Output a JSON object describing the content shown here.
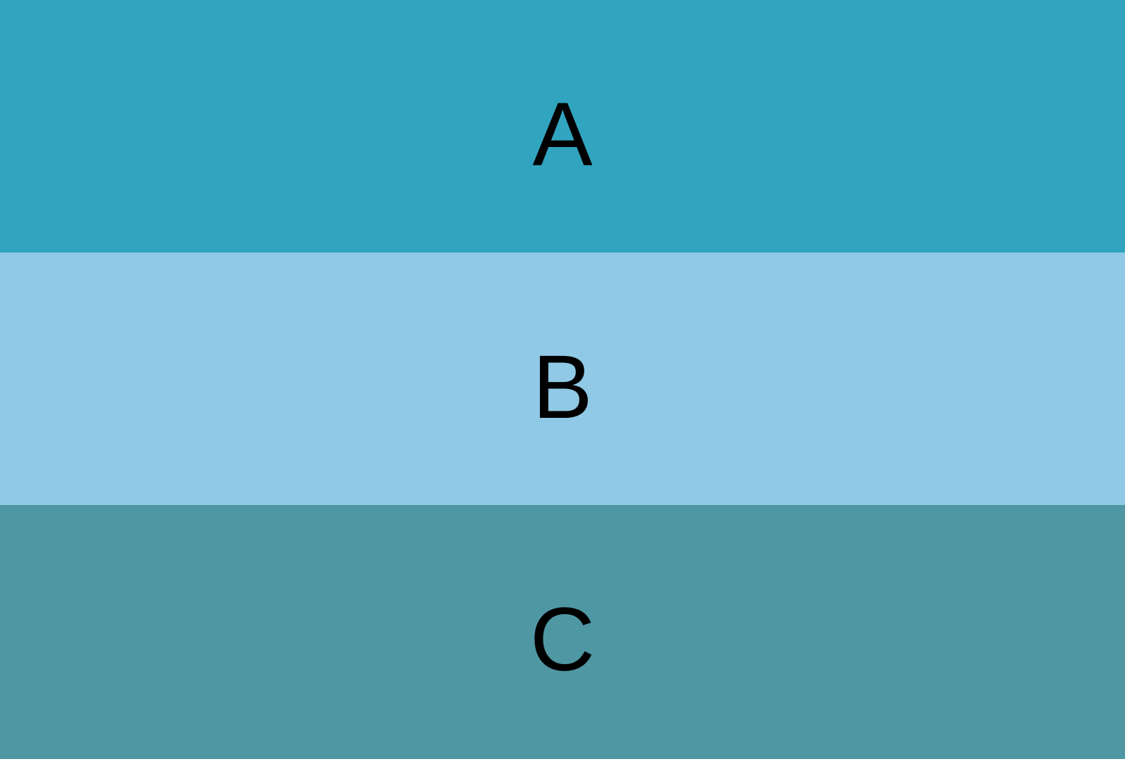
{
  "bands": [
    {
      "label": "A",
      "color": "#31a4c0"
    },
    {
      "label": "B",
      "color": "#90c9e5"
    },
    {
      "label": "C",
      "color": "#4f97a3"
    }
  ]
}
